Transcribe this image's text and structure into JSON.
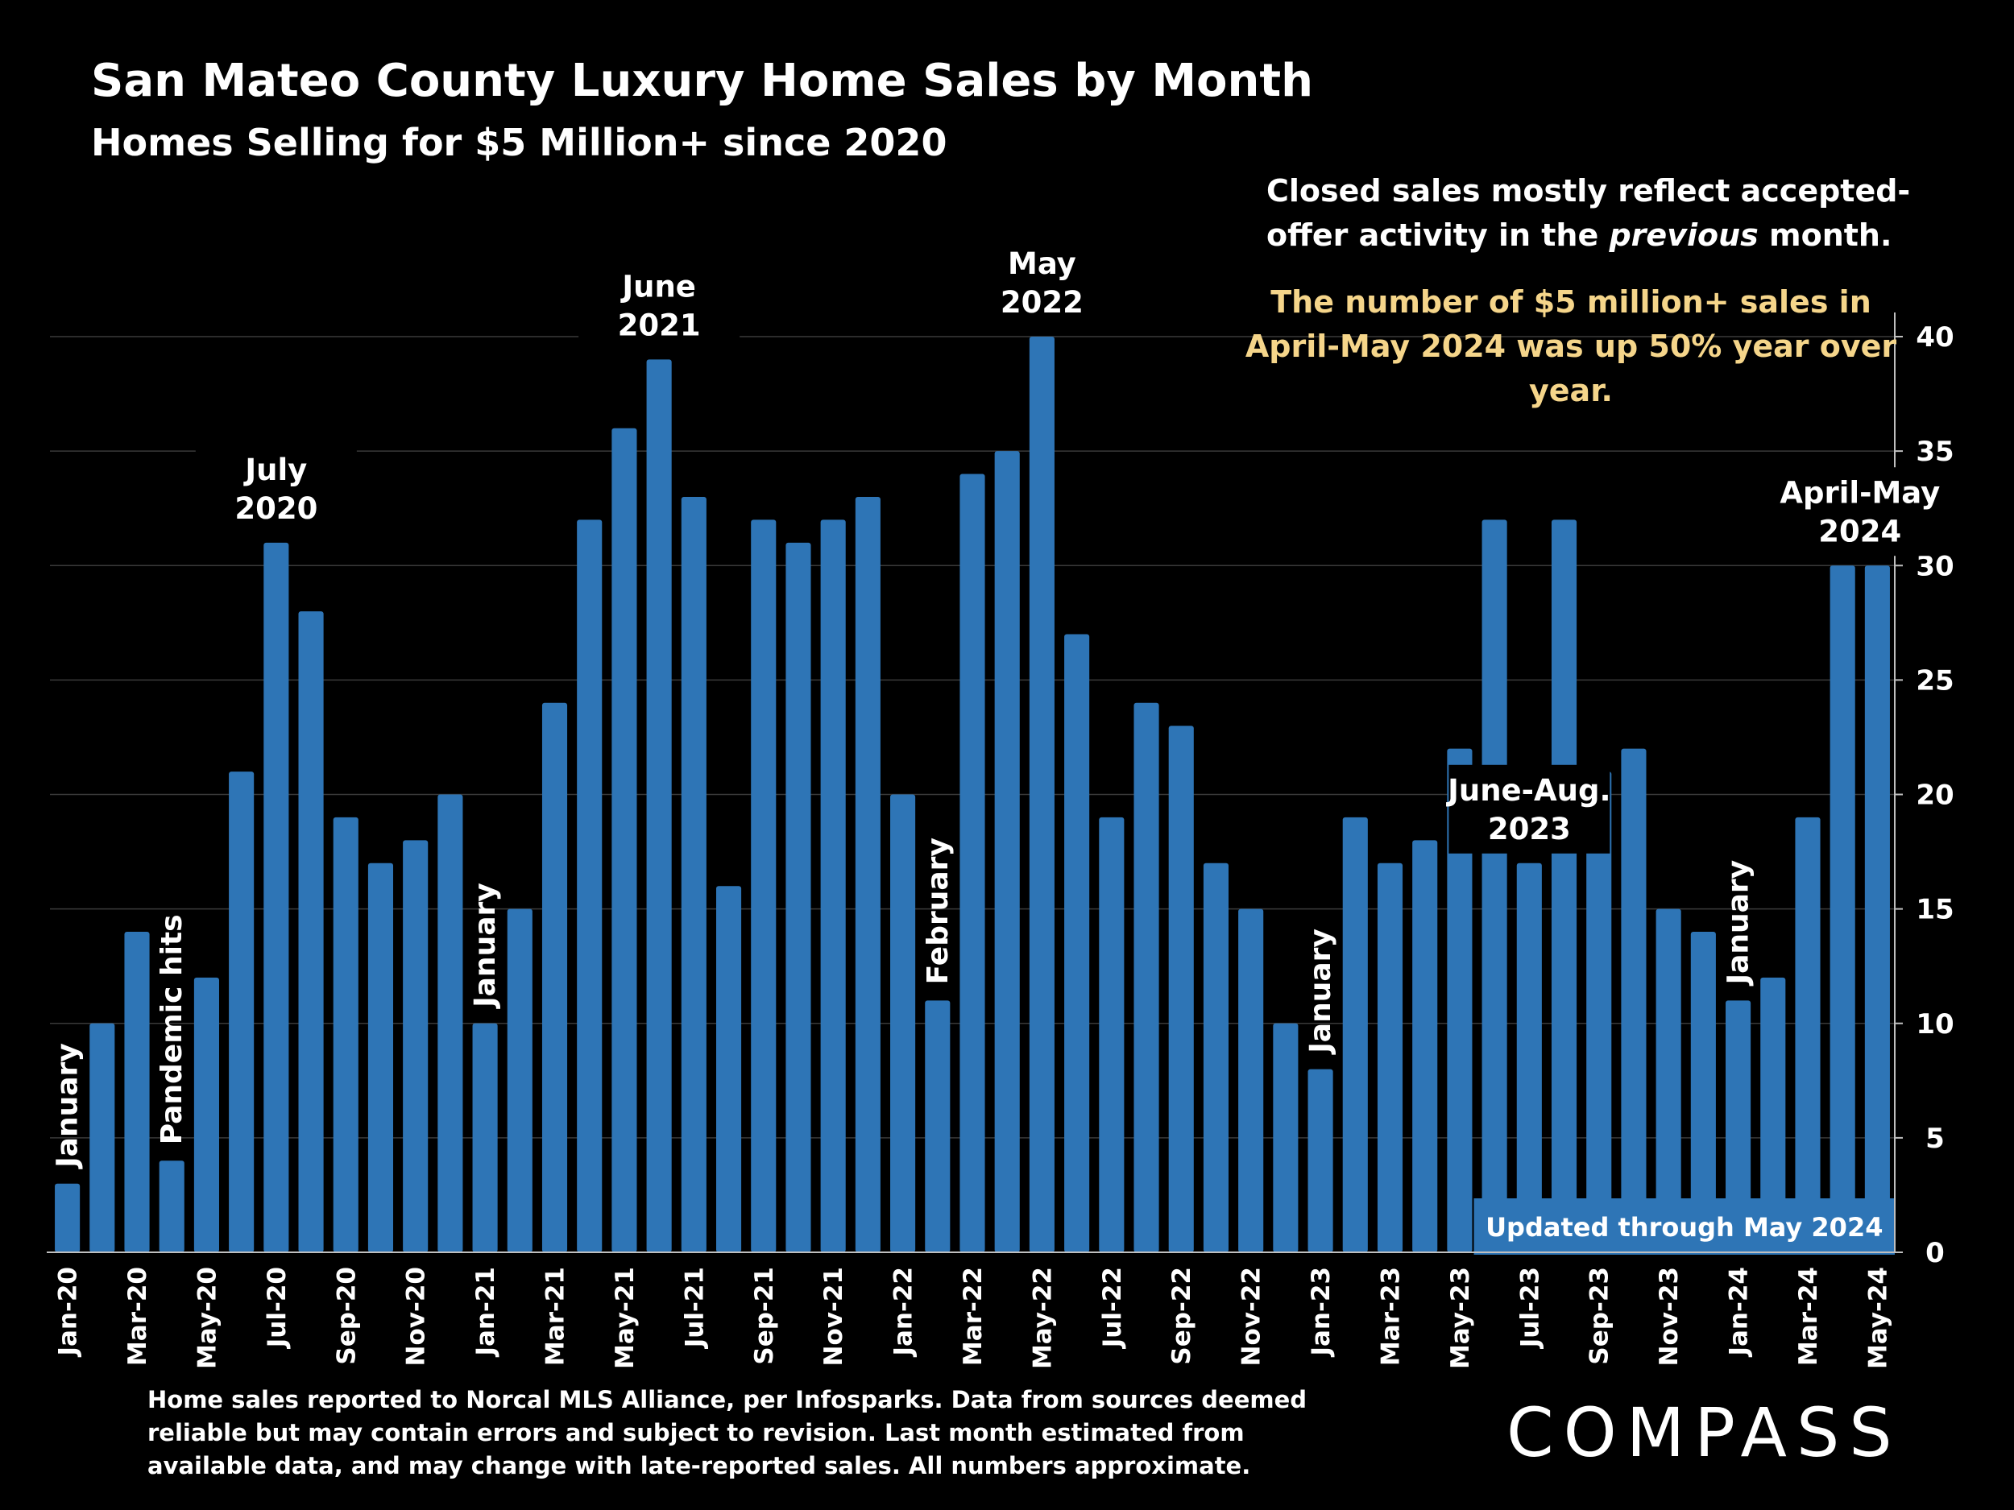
{
  "title": "San Mateo County Luxury Home Sales by Month",
  "subtitle": "Homes Selling for $5 Million+ since 2020",
  "note_previous": {
    "before": "Closed sales mostly reflect accepted-offer activity in the ",
    "emphasis": "previous",
    "after": " month."
  },
  "note_highlight": "The number of $5 million+ sales in April-May 2024 was up 50% year over year.",
  "updated_label": "Updated through May 2024",
  "footnote": "Home sales reported to Norcal MLS Alliance, per Infosparks. Data from sources deemed reliable but may contain errors and subject to revision.  Last month estimated from available data, and may change with late-reported sales. All numbers approximate.",
  "logo_text": "COMPASS",
  "colors": {
    "background": "#000000",
    "bar": "#2e75b6",
    "text": "#ffffff",
    "highlight": "#f5d58a",
    "grid": "#3a3a3a",
    "badge": "#2e75b6"
  },
  "chart_data": {
    "type": "bar",
    "title": "San Mateo County Luxury Home Sales by Month",
    "subtitle": "Homes Selling for $5 Million+ since 2020",
    "ylim": [
      0,
      40
    ],
    "yticks": [
      0,
      5,
      10,
      15,
      20,
      25,
      30,
      35,
      40
    ],
    "y_axis_position": "right",
    "grid": true,
    "categories": [
      "Jan-20",
      "Feb-20",
      "Mar-20",
      "Apr-20",
      "May-20",
      "Jun-20",
      "Jul-20",
      "Aug-20",
      "Sep-20",
      "Oct-20",
      "Nov-20",
      "Dec-20",
      "Jan-21",
      "Feb-21",
      "Mar-21",
      "Apr-21",
      "May-21",
      "Jun-21",
      "Jul-21",
      "Aug-21",
      "Sep-21",
      "Oct-21",
      "Nov-21",
      "Dec-21",
      "Jan-22",
      "Feb-22",
      "Mar-22",
      "Apr-22",
      "May-22",
      "Jun-22",
      "Jul-22",
      "Aug-22",
      "Sep-22",
      "Oct-22",
      "Nov-22",
      "Dec-22",
      "Jan-23",
      "Feb-23",
      "Mar-23",
      "Apr-23",
      "May-23",
      "Jun-23",
      "Jul-23",
      "Aug-23",
      "Sep-23",
      "Oct-23",
      "Nov-23",
      "Dec-23",
      "Jan-24",
      "Feb-24",
      "Mar-24",
      "Apr-24",
      "May-24"
    ],
    "x_tick_labels": [
      "Jan-20",
      "",
      "Mar-20",
      "",
      "May-20",
      "",
      "Jul-20",
      "",
      "Sep-20",
      "",
      "Nov-20",
      "",
      "Jan-21",
      "",
      "Mar-21",
      "",
      "May-21",
      "",
      "Jul-21",
      "",
      "Sep-21",
      "",
      "Nov-21",
      "",
      "Jan-22",
      "",
      "Mar-22",
      "",
      "May-22",
      "",
      "Jul-22",
      "",
      "Sep-22",
      "",
      "Nov-22",
      "",
      "Jan-23",
      "",
      "Mar-23",
      "",
      "May-23",
      "",
      "Jul-23",
      "",
      "Sep-23",
      "",
      "Nov-23",
      "",
      "Jan-24",
      "",
      "Mar-24",
      "",
      "May-24"
    ],
    "values": [
      3,
      10,
      14,
      4,
      12,
      21,
      31,
      28,
      19,
      17,
      18,
      20,
      10,
      15,
      24,
      32,
      36,
      39,
      33,
      16,
      32,
      31,
      32,
      33,
      20,
      11,
      34,
      35,
      40,
      27,
      19,
      24,
      23,
      17,
      15,
      10,
      8,
      19,
      17,
      18,
      22,
      32,
      17,
      32,
      21,
      22,
      15,
      14,
      11,
      12,
      19,
      30,
      30
    ],
    "annotations": [
      {
        "text": "January",
        "index": 0,
        "orientation": "vertical"
      },
      {
        "text": "Pandemic hits",
        "index": 3,
        "orientation": "vertical"
      },
      {
        "text": "July\n2020",
        "index": 6,
        "orientation": "horizontal"
      },
      {
        "text": "January",
        "index": 12,
        "orientation": "vertical"
      },
      {
        "text": "June\n2021",
        "index": 17,
        "orientation": "horizontal"
      },
      {
        "text": "February",
        "index": 25,
        "orientation": "vertical"
      },
      {
        "text": "May\n2022",
        "index": 28,
        "orientation": "horizontal"
      },
      {
        "text": "January",
        "index": 36,
        "orientation": "vertical"
      },
      {
        "text": "June-Aug.\n2023",
        "index": 42,
        "orientation": "horizontal"
      },
      {
        "text": "January",
        "index": 48,
        "orientation": "vertical"
      },
      {
        "text": "April-May\n2024",
        "index": 51.5,
        "orientation": "horizontal"
      }
    ]
  }
}
